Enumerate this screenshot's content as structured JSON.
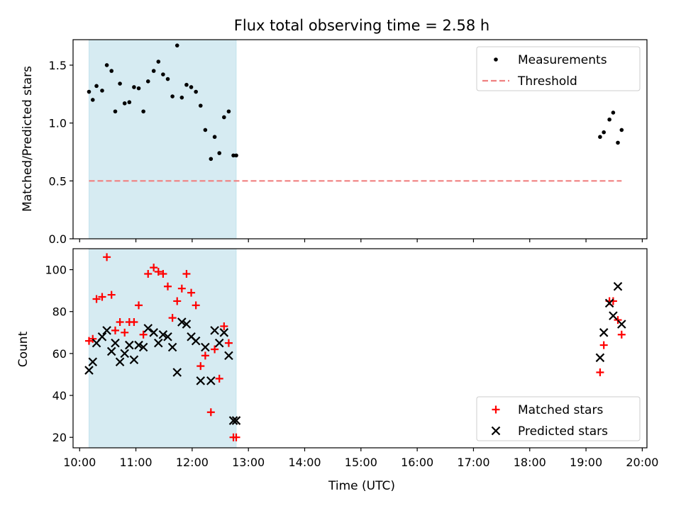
{
  "chart_data": [
    {
      "type": "scatter",
      "title": "Flux total observing time = 2.58 h",
      "xlabel": "",
      "ylabel": "Matched/Predicted stars",
      "xlim": [
        "09:53",
        "20:05"
      ],
      "ylim": [
        0,
        1.72
      ],
      "y_ticks": [
        0.0,
        0.5,
        1.0,
        1.5
      ],
      "y_tick_labels": [
        "0.0",
        "0.5",
        "1.0",
        "1.5"
      ],
      "shaded_span": [
        "10:10",
        "12:47"
      ],
      "legend": "top-right",
      "series": [
        {
          "name": "Measurements",
          "marker": "dot",
          "color": "#000000",
          "x": [
            "10:10",
            "10:14",
            "10:18",
            "10:24",
            "10:29",
            "10:34",
            "10:38",
            "10:43",
            "10:48",
            "10:53",
            "10:58",
            "11:03",
            "11:08",
            "11:13",
            "11:19",
            "11:24",
            "11:29",
            "11:34",
            "11:39",
            "11:44",
            "11:49",
            "11:54",
            "11:59",
            "12:04",
            "12:09",
            "12:14",
            "12:20",
            "12:24",
            "12:29",
            "12:34",
            "12:39",
            "12:44",
            "12:47",
            "19:15",
            "19:19",
            "19:25",
            "19:29",
            "19:34",
            "19:38"
          ],
          "y": [
            1.27,
            1.2,
            1.32,
            1.28,
            1.5,
            1.45,
            1.1,
            1.34,
            1.17,
            1.18,
            1.31,
            1.3,
            1.1,
            1.36,
            1.45,
            1.53,
            1.42,
            1.38,
            1.23,
            1.67,
            1.22,
            1.33,
            1.31,
            1.27,
            1.15,
            0.94,
            0.69,
            0.88,
            0.74,
            1.05,
            1.1,
            0.72,
            0.72,
            0.88,
            0.92,
            1.03,
            1.09,
            0.83,
            0.94
          ]
        },
        {
          "name": "Threshold",
          "marker": "dashed-line",
          "color": "#f08080",
          "x": [
            "10:10",
            "19:38"
          ],
          "y": [
            0.5,
            0.5
          ]
        }
      ]
    },
    {
      "type": "scatter",
      "title": "",
      "xlabel": "Time (UTC)",
      "ylabel": "Count",
      "xlim": [
        "09:53",
        "20:05"
      ],
      "ylim": [
        15,
        110
      ],
      "x_ticks": [
        "10:00",
        "11:00",
        "12:00",
        "13:00",
        "14:00",
        "15:00",
        "16:00",
        "17:00",
        "18:00",
        "19:00",
        "20:00"
      ],
      "y_ticks": [
        20,
        40,
        60,
        80,
        100
      ],
      "y_tick_labels": [
        "20",
        "40",
        "60",
        "80",
        "100"
      ],
      "shaded_span": [
        "10:10",
        "12:47"
      ],
      "legend": "bottom-right",
      "series": [
        {
          "name": "Matched stars",
          "marker": "plus",
          "color": "#ff0000",
          "x": [
            "10:10",
            "10:14",
            "10:18",
            "10:24",
            "10:29",
            "10:34",
            "10:38",
            "10:43",
            "10:48",
            "10:53",
            "10:58",
            "11:03",
            "11:08",
            "11:13",
            "11:19",
            "11:24",
            "11:29",
            "11:34",
            "11:39",
            "11:44",
            "11:49",
            "11:54",
            "11:59",
            "12:04",
            "12:09",
            "12:14",
            "12:20",
            "12:24",
            "12:29",
            "12:34",
            "12:39",
            "12:44",
            "12:47",
            "19:15",
            "19:19",
            "19:25",
            "19:29",
            "19:34",
            "19:38"
          ],
          "y": [
            66,
            67,
            86,
            87,
            106,
            88,
            71,
            75,
            70,
            75,
            75,
            83,
            69,
            98,
            101,
            99,
            98,
            92,
            77,
            85,
            91,
            98,
            89,
            83,
            54,
            59,
            32,
            62,
            48,
            73,
            65,
            20,
            20,
            51,
            64,
            85,
            85,
            76,
            69
          ]
        },
        {
          "name": "Predicted stars",
          "marker": "x",
          "color": "#000000",
          "x": [
            "10:10",
            "10:14",
            "10:18",
            "10:24",
            "10:29",
            "10:34",
            "10:38",
            "10:43",
            "10:48",
            "10:53",
            "10:58",
            "11:03",
            "11:08",
            "11:13",
            "11:19",
            "11:24",
            "11:29",
            "11:34",
            "11:39",
            "11:44",
            "11:49",
            "11:54",
            "11:59",
            "12:04",
            "12:09",
            "12:14",
            "12:20",
            "12:24",
            "12:29",
            "12:34",
            "12:39",
            "12:44",
            "12:47",
            "19:15",
            "19:19",
            "19:25",
            "19:29",
            "19:34",
            "19:38"
          ],
          "y": [
            52,
            56,
            65,
            68,
            71,
            61,
            65,
            56,
            60,
            64,
            57,
            64,
            63,
            72,
            70,
            65,
            69,
            68,
            63,
            51,
            75,
            74,
            68,
            66,
            47,
            63,
            47,
            71,
            65,
            70,
            59,
            28,
            28,
            58,
            70,
            84,
            78,
            92,
            74
          ]
        }
      ]
    }
  ]
}
